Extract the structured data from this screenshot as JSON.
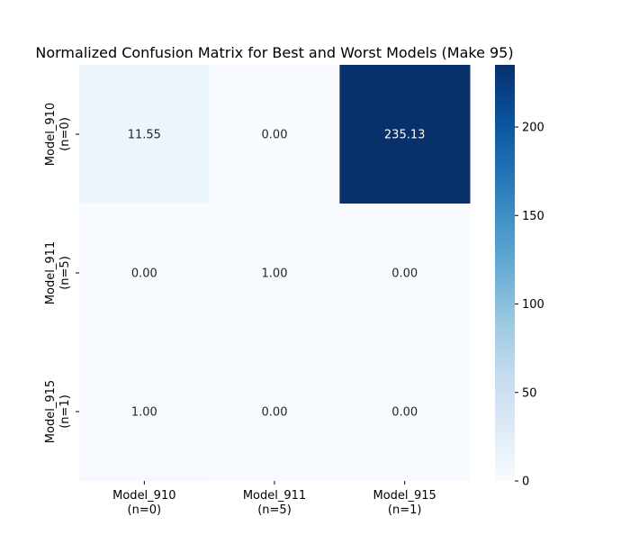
{
  "chart_data": {
    "type": "heatmap",
    "title": "Normalized Confusion Matrix for Best and Worst Models (Make 95)",
    "xlabel": "",
    "ylabel": "",
    "x_categories": [
      [
        "Model_910",
        "(n=0)"
      ],
      [
        "Model_911",
        "(n=5)"
      ],
      [
        "Model_915",
        "(n=1)"
      ]
    ],
    "y_categories": [
      [
        "Model_910",
        "(n=0)"
      ],
      [
        "Model_911",
        "(n=5)"
      ],
      [
        "Model_915",
        "(n=1)"
      ]
    ],
    "values": [
      [
        11.55,
        0.0,
        235.13
      ],
      [
        0.0,
        1.0,
        0.0
      ],
      [
        1.0,
        0.0,
        0.0
      ]
    ],
    "cell_labels": [
      [
        "11.55",
        "0.00",
        "235.13"
      ],
      [
        "0.00",
        "1.00",
        "0.00"
      ],
      [
        "1.00",
        "0.00",
        "0.00"
      ]
    ],
    "colorbar": {
      "min": 0,
      "max": 235.13,
      "ticks": [
        0,
        50,
        100,
        150,
        200
      ],
      "colormap": "Blues"
    },
    "grid": false,
    "legend": "none"
  }
}
